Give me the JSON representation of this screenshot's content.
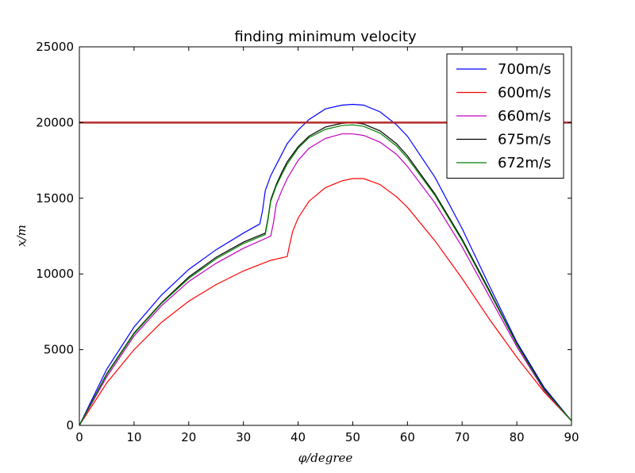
{
  "chart_data": {
    "type": "line",
    "title": "finding minimum velocity",
    "xlabel": "φ/degree",
    "ylabel": "x/m",
    "xlim": [
      0,
      90
    ],
    "ylim": [
      0,
      25000
    ],
    "xticks": [
      "0",
      "10",
      "20",
      "30",
      "40",
      "50",
      "60",
      "70",
      "80",
      "90"
    ],
    "yticks": [
      "0",
      "5000",
      "10000",
      "15000",
      "20000",
      "25000"
    ],
    "grid": false,
    "legend_position": "top-right",
    "reference_line": {
      "y": 20000,
      "color": "#b22222"
    },
    "series": [
      {
        "name": "700m/s",
        "color": "#0000ff",
        "x": [
          0,
          5,
          10,
          15,
          20,
          25,
          30,
          33,
          33.5,
          34,
          35,
          36,
          38,
          40,
          42,
          45,
          48,
          50,
          52,
          55,
          58,
          60,
          65,
          70,
          75,
          80,
          85,
          90
        ],
        "y": [
          0,
          3700,
          6500,
          8600,
          10300,
          11600,
          12700,
          13300,
          14200,
          15500,
          16500,
          17200,
          18600,
          19500,
          20200,
          20900,
          21150,
          21200,
          21150,
          20700,
          19850,
          19100,
          16400,
          13000,
          9200,
          5500,
          2500,
          300
        ]
      },
      {
        "name": "600m/s",
        "color": "#ff0000",
        "x": [
          0,
          5,
          10,
          15,
          20,
          25,
          30,
          35,
          38,
          38.5,
          39,
          40,
          42,
          45,
          48,
          50,
          52,
          55,
          58,
          60,
          65,
          70,
          75,
          80,
          85,
          90
        ],
        "y": [
          0,
          2800,
          5000,
          6800,
          8200,
          9300,
          10200,
          10900,
          11150,
          12000,
          12800,
          13700,
          14800,
          15700,
          16150,
          16300,
          16300,
          15900,
          15100,
          14400,
          12200,
          9700,
          7000,
          4500,
          2200,
          300
        ]
      },
      {
        "name": "660m/s",
        "color": "#bf00bf",
        "x": [
          0,
          5,
          10,
          15,
          20,
          25,
          30,
          35,
          35.5,
          36,
          37,
          38,
          40,
          42,
          45,
          48,
          50,
          52,
          55,
          58,
          60,
          65,
          70,
          75,
          80,
          85,
          90
        ],
        "y": [
          0,
          3200,
          5900,
          7900,
          9500,
          10700,
          11700,
          12500,
          13400,
          14600,
          15500,
          16300,
          17500,
          18300,
          18950,
          19250,
          19250,
          19150,
          18700,
          17900,
          17100,
          14700,
          11800,
          8500,
          5200,
          2300,
          300
        ]
      },
      {
        "name": "675m/s",
        "color": "#000000",
        "x": [
          0,
          5,
          10,
          15,
          20,
          25,
          30,
          34,
          34.5,
          35,
          36,
          37,
          38,
          40,
          42,
          45,
          48,
          50,
          52,
          55,
          58,
          60,
          65,
          70,
          75,
          80,
          85,
          90
        ],
        "y": [
          0,
          3400,
          6100,
          8100,
          9800,
          11100,
          12100,
          12700,
          13700,
          14900,
          15900,
          16700,
          17400,
          18400,
          19100,
          19700,
          19950,
          20000,
          19900,
          19450,
          18600,
          17800,
          15300,
          12300,
          8900,
          5400,
          2400,
          300
        ]
      },
      {
        "name": "672m/s",
        "color": "#008000",
        "x": [
          0,
          5,
          10,
          15,
          20,
          25,
          30,
          34,
          34.5,
          35,
          36,
          37,
          38,
          40,
          42,
          45,
          48,
          50,
          52,
          55,
          58,
          60,
          65,
          70,
          75,
          80,
          85,
          90
        ],
        "y": [
          0,
          3350,
          6050,
          8050,
          9700,
          11000,
          12000,
          12600,
          13600,
          14800,
          15800,
          16550,
          17250,
          18300,
          19000,
          19550,
          19800,
          19850,
          19750,
          19300,
          18450,
          17650,
          15200,
          12200,
          8800,
          5350,
          2350,
          300
        ]
      }
    ]
  }
}
